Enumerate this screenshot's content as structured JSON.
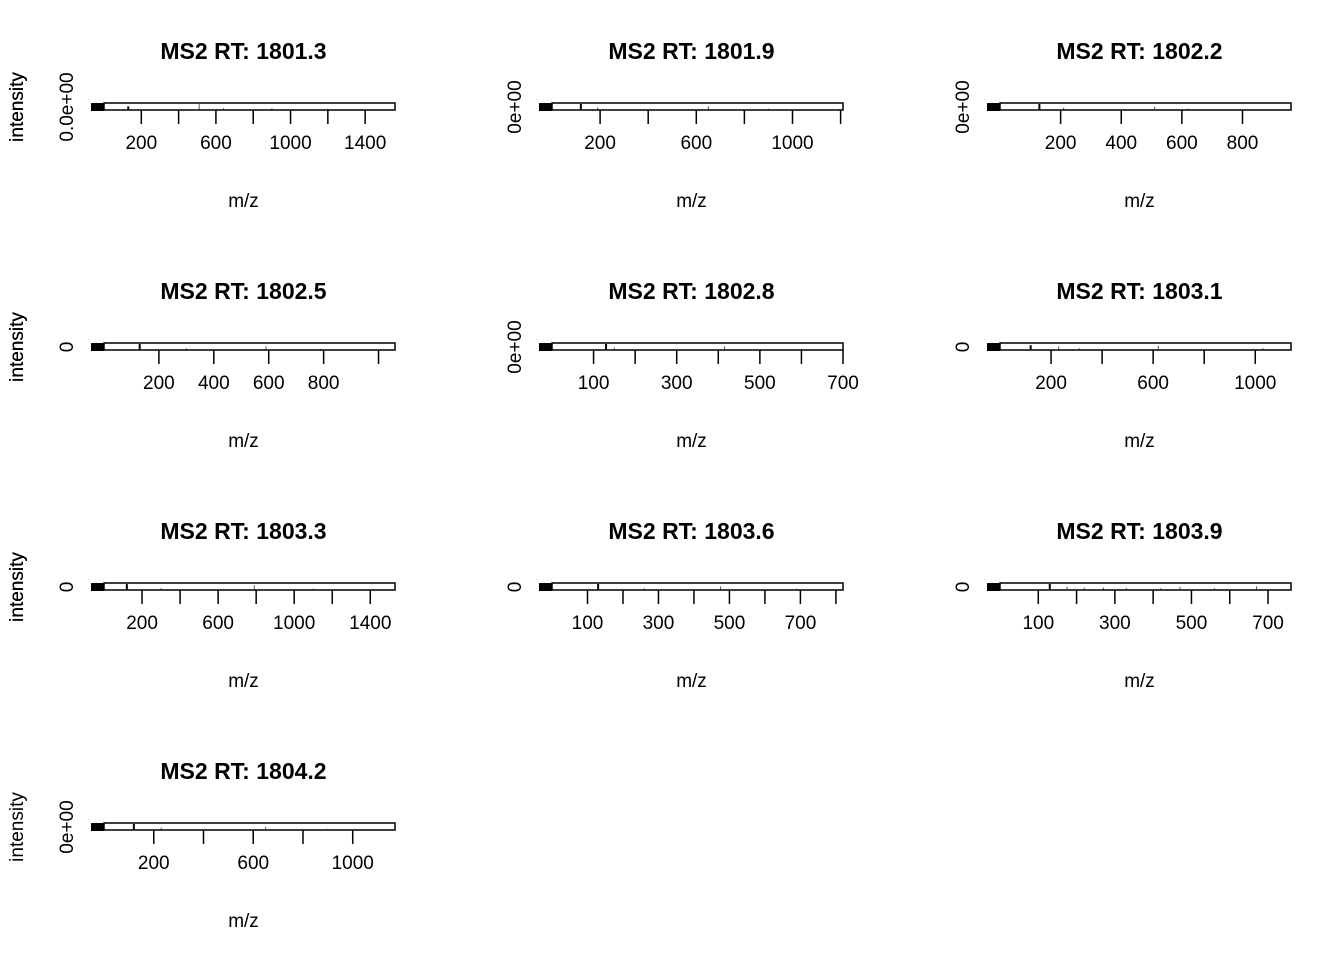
{
  "chart_data": [
    {
      "type": "bar",
      "title": "MS2 RT: 1801.3",
      "xlabel": "m/z",
      "ylabel": "intensity",
      "xlim": [
        0,
        1560
      ],
      "xticks": [
        200,
        400,
        600,
        800,
        1000,
        1200,
        1400
      ],
      "xtick_labels": [
        "200",
        "600",
        "1000",
        "1400"
      ],
      "ytick_labels": [
        "0.0e+00"
      ],
      "peaks": {
        "mz": [
          130,
          510,
          640,
          900,
          1200
        ],
        "intensity": [
          0.6,
          1.0,
          0.3,
          0.3,
          0.2
        ]
      }
    },
    {
      "type": "bar",
      "title": "MS2 RT: 1801.9",
      "xlabel": "m/z",
      "ylabel": "intensity",
      "xlim": [
        0,
        1210
      ],
      "xticks": [
        200,
        400,
        600,
        800,
        1000,
        1200
      ],
      "xtick_labels": [
        "200",
        "600",
        "1000"
      ],
      "ytick_labels": [
        "0e+00"
      ],
      "peaks": {
        "mz": [
          120,
          190,
          650,
          900
        ],
        "intensity": [
          1.0,
          0.4,
          0.6,
          0.2
        ]
      }
    },
    {
      "type": "bar",
      "title": "MS2 RT: 1802.2",
      "xlabel": "m/z",
      "ylabel": "intensity",
      "xlim": [
        0,
        960
      ],
      "xticks": [
        200,
        400,
        600,
        800
      ],
      "xtick_labels": [
        "200",
        "400",
        "600",
        "800"
      ],
      "ytick_labels": [
        "0e+00"
      ],
      "peaks": {
        "mz": [
          130,
          210,
          510,
          620
        ],
        "intensity": [
          1.0,
          0.4,
          0.5,
          0.2
        ]
      }
    },
    {
      "type": "bar",
      "title": "MS2 RT: 1802.5",
      "xlabel": "m/z",
      "ylabel": "intensity",
      "xlim": [
        0,
        1060
      ],
      "xticks": [
        200,
        400,
        600,
        800,
        1000
      ],
      "xtick_labels": [
        "200",
        "400",
        "600",
        "800"
      ],
      "ytick_labels": [
        "0"
      ],
      "peaks": {
        "mz": [
          130,
          300,
          590,
          790
        ],
        "intensity": [
          1.0,
          0.3,
          0.6,
          0.2
        ]
      }
    },
    {
      "type": "bar",
      "title": "MS2 RT: 1802.8",
      "xlabel": "m/z",
      "ylabel": "intensity",
      "xlim": [
        0,
        700
      ],
      "xticks": [
        100,
        200,
        300,
        400,
        500,
        600,
        700
      ],
      "xtick_labels": [
        "100",
        "300",
        "500",
        "700"
      ],
      "ytick_labels": [
        "0e+00"
      ],
      "peaks": {
        "mz": [
          130,
          150,
          415,
          600
        ],
        "intensity": [
          1.0,
          0.4,
          0.6,
          0.2
        ]
      }
    },
    {
      "type": "bar",
      "title": "MS2 RT: 1803.1",
      "xlabel": "m/z",
      "ylabel": "intensity",
      "xlim": [
        0,
        1140
      ],
      "xticks": [
        200,
        400,
        600,
        800,
        1000
      ],
      "xtick_labels": [
        "200",
        "600",
        "1000"
      ],
      "ytick_labels": [
        "0"
      ],
      "peaks": {
        "mz": [
          120,
          230,
          310,
          620,
          1030
        ],
        "intensity": [
          0.8,
          0.6,
          0.3,
          0.7,
          0.3
        ]
      }
    },
    {
      "type": "bar",
      "title": "MS2 RT: 1803.3",
      "xlabel": "m/z",
      "ylabel": "intensity",
      "xlim": [
        0,
        1530
      ],
      "xticks": [
        200,
        400,
        600,
        800,
        1000,
        1200,
        1400
      ],
      "xtick_labels": [
        "200",
        "600",
        "1000",
        "1400"
      ],
      "ytick_labels": [
        "0"
      ],
      "peaks": {
        "mz": [
          120,
          300,
          790,
          1100
        ],
        "intensity": [
          1.0,
          0.3,
          0.8,
          0.2
        ]
      }
    },
    {
      "type": "bar",
      "title": "MS2 RT: 1803.6",
      "xlabel": "m/z",
      "ylabel": "intensity",
      "xlim": [
        0,
        820
      ],
      "xticks": [
        100,
        200,
        300,
        400,
        500,
        600,
        700,
        800
      ],
      "xtick_labels": [
        "100",
        "300",
        "500",
        "700"
      ],
      "ytick_labels": [
        "0"
      ],
      "peaks": {
        "mz": [
          130,
          260,
          475,
          690
        ],
        "intensity": [
          1.0,
          0.3,
          0.6,
          0.2
        ]
      }
    },
    {
      "type": "bar",
      "title": "MS2 RT: 1803.9",
      "xlabel": "m/z",
      "ylabel": "intensity",
      "xlim": [
        0,
        760
      ],
      "xticks": [
        100,
        200,
        300,
        400,
        500,
        600,
        700
      ],
      "xtick_labels": [
        "100",
        "300",
        "500",
        "700"
      ],
      "ytick_labels": [
        "0"
      ],
      "peaks": {
        "mz": [
          130,
          175,
          220,
          270,
          330,
          420,
          470,
          560,
          670
        ],
        "intensity": [
          1.0,
          0.5,
          0.4,
          0.4,
          0.3,
          0.3,
          0.5,
          0.3,
          0.6
        ]
      }
    },
    {
      "type": "bar",
      "title": "MS2 RT: 1804.2",
      "xlabel": "m/z",
      "ylabel": "intensity",
      "xlim": [
        0,
        1170
      ],
      "xticks": [
        200,
        400,
        600,
        800,
        1000
      ],
      "xtick_labels": [
        "200",
        "600",
        "1000"
      ],
      "ytick_labels": [
        "0e+00"
      ],
      "peaks": {
        "mz": [
          120,
          230,
          650,
          900
        ],
        "intensity": [
          1.0,
          0.4,
          0.5,
          0.2
        ]
      }
    }
  ]
}
